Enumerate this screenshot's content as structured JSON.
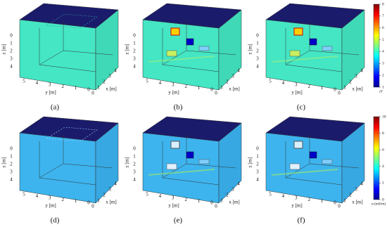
{
  "panels": [
    {
      "caption": "(a)",
      "z_label": "z [m]",
      "y_label": "y [m]",
      "x_label": "x [m]",
      "z_ticks": [
        0,
        1,
        2,
        3,
        4
      ],
      "y_ticks": [
        5,
        4,
        3,
        2,
        1,
        0
      ],
      "x_ticks": [
        0,
        1,
        2,
        3,
        4
      ]
    },
    {
      "caption": "(b)",
      "z_label": "z [m]",
      "y_label": "y [m]",
      "x_label": "x [m]",
      "z_ticks": [
        0,
        1,
        2,
        3,
        4
      ],
      "y_ticks": [
        5,
        4,
        3,
        2,
        1,
        0
      ],
      "x_ticks": [
        0,
        1,
        2,
        3,
        4
      ]
    },
    {
      "caption": "(c)",
      "z_label": "z [m]",
      "y_label": "y [m]",
      "x_label": "x [m]",
      "z_ticks": [
        0,
        1,
        2,
        3,
        4
      ],
      "y_ticks": [
        5,
        4,
        3,
        2,
        1,
        0
      ],
      "x_ticks": [
        0,
        1,
        2,
        3,
        4
      ]
    },
    {
      "caption": "(d)",
      "z_label": "z [m]",
      "y_label": "y [m]",
      "x_label": "x [m]",
      "z_ticks": [
        0,
        1,
        2,
        3,
        4
      ],
      "y_ticks": [
        5,
        4,
        3,
        2,
        1,
        0
      ],
      "x_ticks": [
        0,
        1,
        2,
        3,
        4
      ]
    },
    {
      "caption": "(e)",
      "z_label": "z [m]",
      "y_label": "y [m]",
      "x_label": "x [m]",
      "z_ticks": [
        0,
        1,
        2,
        3,
        4
      ],
      "y_ticks": [
        5,
        4,
        3,
        2,
        1,
        0
      ],
      "x_ticks": [
        0,
        1,
        2,
        3,
        4
      ]
    },
    {
      "caption": "(f)",
      "z_label": "z [m]",
      "y_label": "y [m]",
      "x_label": "x [m]",
      "z_ticks": [
        0,
        1,
        2,
        3,
        4
      ],
      "y_ticks": [
        5,
        4,
        3,
        2,
        1,
        0
      ],
      "x_ticks": [
        0,
        1,
        2,
        3,
        4
      ]
    }
  ],
  "colorbars": [
    {
      "label": "εr",
      "ticks": [
        1,
        2,
        3,
        4,
        5,
        6,
        7,
        8
      ]
    },
    {
      "label": "σ (mS/m)",
      "ticks": [
        0,
        2,
        4,
        6,
        8,
        10
      ]
    }
  ]
}
